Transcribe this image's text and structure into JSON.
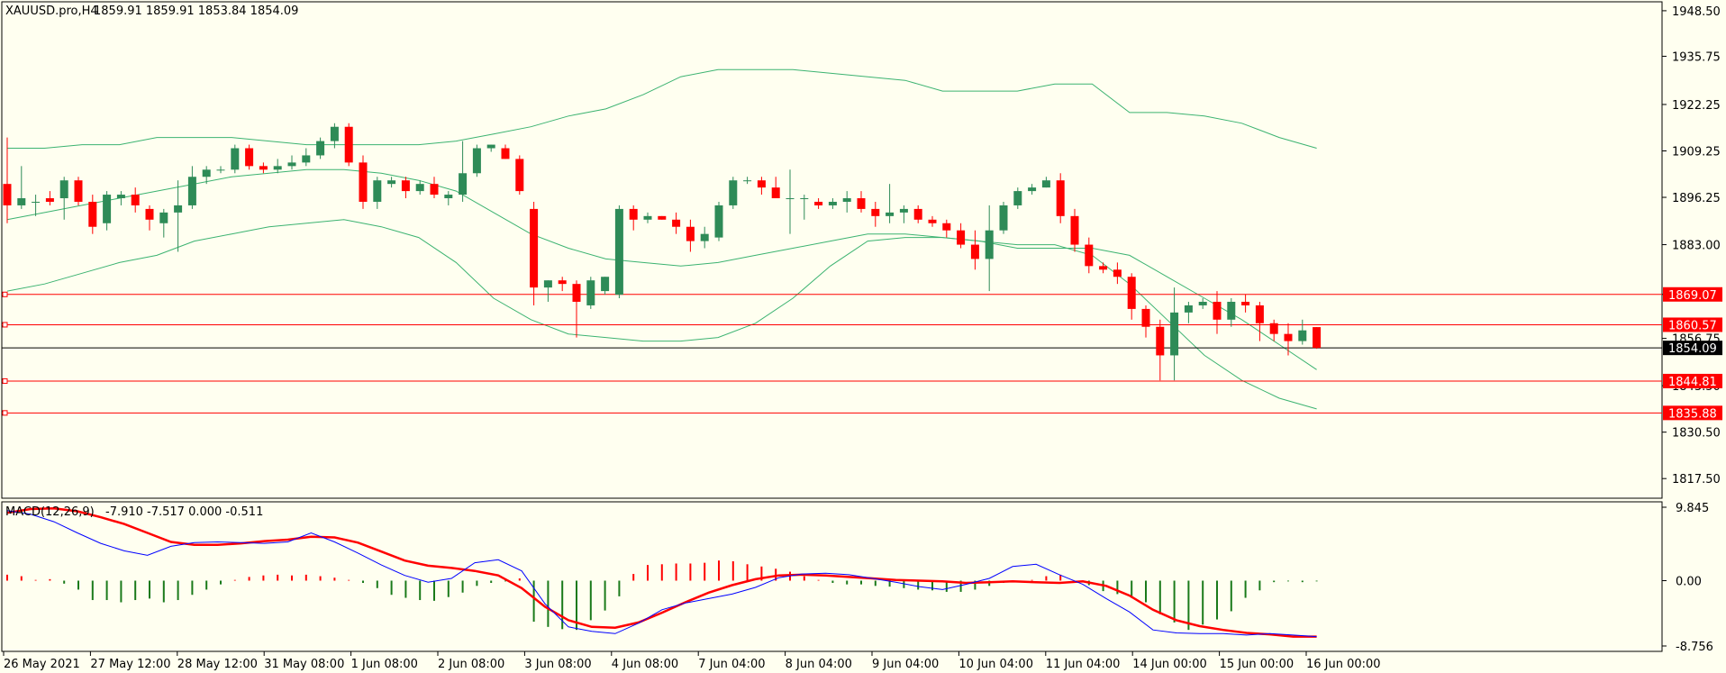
{
  "header": {
    "symbol_label": "XAUUSD.pro,H4",
    "ohlc": "1859.91 1859.91 1853.84 1854.09"
  },
  "macd": {
    "label": "MACD(12,26,9)",
    "values": "-7.910 -7.517 0.000 -0.511"
  },
  "colors": {
    "background": "#fffff0",
    "bull": "#2e8b57",
    "bear": "#ff0000",
    "bands": "#3cb371",
    "macd_line": "#0000ff",
    "signal_line": "#ff0000",
    "levels": "#ff0000",
    "current_price": "#000000"
  },
  "chart_data": [
    {
      "type": "candlestick",
      "symbol": "XAUUSD.pro",
      "timeframe": "H4",
      "y_ticks": [
        "1948.50",
        "1935.75",
        "1922.25",
        "1909.25",
        "1896.25",
        "1883.00",
        "1869.07",
        "1856.75",
        "1843.50",
        "1830.50",
        "1817.50"
      ],
      "ylim": [
        1812,
        1951
      ],
      "x_labels": [
        "26 May 2021",
        "27 May 12:00",
        "28 May 12:00",
        "31 May 08:00",
        "1 Jun 08:00",
        "2 Jun 08:00",
        "3 Jun 08:00",
        "4 Jun 08:00",
        "7 Jun 04:00",
        "8 Jun 04:00",
        "9 Jun 04:00",
        "10 Jun 04:00",
        "11 Jun 04:00",
        "14 Jun 00:00",
        "15 Jun 00:00",
        "16 Jun 00:00"
      ],
      "candles": [
        {
          "o": 1900,
          "h": 1913,
          "l": 1889,
          "c": 1894
        },
        {
          "o": 1894,
          "h": 1905,
          "l": 1893,
          "c": 1896
        },
        {
          "o": 1895,
          "h": 1897,
          "l": 1891,
          "c": 1895
        },
        {
          "o": 1896,
          "h": 1898,
          "l": 1894,
          "c": 1895
        },
        {
          "o": 1896,
          "h": 1902,
          "l": 1890,
          "c": 1901
        },
        {
          "o": 1901,
          "h": 1902,
          "l": 1894,
          "c": 1895
        },
        {
          "o": 1895,
          "h": 1897,
          "l": 1886,
          "c": 1888
        },
        {
          "o": 1889,
          "h": 1898,
          "l": 1887,
          "c": 1897
        },
        {
          "o": 1896,
          "h": 1898,
          "l": 1894,
          "c": 1897
        },
        {
          "o": 1897,
          "h": 1899,
          "l": 1892,
          "c": 1894
        },
        {
          "o": 1893,
          "h": 1894,
          "l": 1887,
          "c": 1890
        },
        {
          "o": 1889,
          "h": 1893,
          "l": 1885,
          "c": 1892
        },
        {
          "o": 1892,
          "h": 1901,
          "l": 1881,
          "c": 1894
        },
        {
          "o": 1894,
          "h": 1905,
          "l": 1893,
          "c": 1902
        },
        {
          "o": 1902,
          "h": 1905,
          "l": 1900,
          "c": 1904
        },
        {
          "o": 1904,
          "h": 1905,
          "l": 1903,
          "c": 1904
        },
        {
          "o": 1904,
          "h": 1911,
          "l": 1903,
          "c": 1910
        },
        {
          "o": 1910,
          "h": 1911,
          "l": 1904,
          "c": 1905
        },
        {
          "o": 1905,
          "h": 1906,
          "l": 1903,
          "c": 1904
        },
        {
          "o": 1904,
          "h": 1907,
          "l": 1903,
          "c": 1905
        },
        {
          "o": 1905,
          "h": 1908,
          "l": 1904,
          "c": 1906
        },
        {
          "o": 1906,
          "h": 1910,
          "l": 1905,
          "c": 1908
        },
        {
          "o": 1908,
          "h": 1913,
          "l": 1907,
          "c": 1912
        },
        {
          "o": 1912,
          "h": 1917,
          "l": 1910,
          "c": 1916
        },
        {
          "o": 1916,
          "h": 1917,
          "l": 1905,
          "c": 1906
        },
        {
          "o": 1906,
          "h": 1908,
          "l": 1893,
          "c": 1895
        },
        {
          "o": 1895,
          "h": 1902,
          "l": 1893,
          "c": 1901
        },
        {
          "o": 1900,
          "h": 1902,
          "l": 1899,
          "c": 1901
        },
        {
          "o": 1901,
          "h": 1902,
          "l": 1896,
          "c": 1898
        },
        {
          "o": 1898,
          "h": 1901,
          "l": 1897,
          "c": 1900
        },
        {
          "o": 1900,
          "h": 1902,
          "l": 1896,
          "c": 1897
        },
        {
          "o": 1896,
          "h": 1898,
          "l": 1894,
          "c": 1897
        },
        {
          "o": 1897,
          "h": 1912,
          "l": 1895,
          "c": 1903
        },
        {
          "o": 1903,
          "h": 1911,
          "l": 1902,
          "c": 1910
        },
        {
          "o": 1910,
          "h": 1911,
          "l": 1909,
          "c": 1911
        },
        {
          "o": 1910,
          "h": 1911,
          "l": 1907,
          "c": 1907
        },
        {
          "o": 1907,
          "h": 1908,
          "l": 1897,
          "c": 1898
        },
        {
          "o": 1893,
          "h": 1895,
          "l": 1866,
          "c": 1871
        },
        {
          "o": 1871,
          "h": 1873,
          "l": 1867,
          "c": 1873
        },
        {
          "o": 1873,
          "h": 1874,
          "l": 1870,
          "c": 1872
        },
        {
          "o": 1872,
          "h": 1873,
          "l": 1857,
          "c": 1867
        },
        {
          "o": 1866,
          "h": 1874,
          "l": 1865,
          "c": 1873
        },
        {
          "o": 1870,
          "h": 1874,
          "l": 1869,
          "c": 1874
        },
        {
          "o": 1869,
          "h": 1894,
          "l": 1868,
          "c": 1893
        },
        {
          "o": 1893,
          "h": 1894,
          "l": 1887,
          "c": 1890
        },
        {
          "o": 1890,
          "h": 1892,
          "l": 1889,
          "c": 1891
        },
        {
          "o": 1891,
          "h": 1891,
          "l": 1890,
          "c": 1890
        },
        {
          "o": 1890,
          "h": 1892,
          "l": 1886,
          "c": 1888
        },
        {
          "o": 1888,
          "h": 1890,
          "l": 1881,
          "c": 1884
        },
        {
          "o": 1884,
          "h": 1888,
          "l": 1882,
          "c": 1886
        },
        {
          "o": 1885,
          "h": 1895,
          "l": 1884,
          "c": 1894
        },
        {
          "o": 1894,
          "h": 1902,
          "l": 1893,
          "c": 1901
        },
        {
          "o": 1901,
          "h": 1902,
          "l": 1900,
          "c": 1901
        },
        {
          "o": 1901,
          "h": 1902,
          "l": 1897,
          "c": 1899
        },
        {
          "o": 1899,
          "h": 1902,
          "l": 1897,
          "c": 1896
        },
        {
          "o": 1896,
          "h": 1904,
          "l": 1886,
          "c": 1896
        },
        {
          "o": 1896,
          "h": 1897,
          "l": 1890,
          "c": 1896
        },
        {
          "o": 1895,
          "h": 1896,
          "l": 1893,
          "c": 1894
        },
        {
          "o": 1894,
          "h": 1896,
          "l": 1893,
          "c": 1895
        },
        {
          "o": 1895,
          "h": 1898,
          "l": 1892,
          "c": 1896
        },
        {
          "o": 1896,
          "h": 1898,
          "l": 1892,
          "c": 1893
        },
        {
          "o": 1893,
          "h": 1895,
          "l": 1888,
          "c": 1891
        },
        {
          "o": 1891,
          "h": 1900,
          "l": 1889,
          "c": 1892
        },
        {
          "o": 1892,
          "h": 1894,
          "l": 1889,
          "c": 1893
        },
        {
          "o": 1893,
          "h": 1894,
          "l": 1889,
          "c": 1890
        },
        {
          "o": 1890,
          "h": 1891,
          "l": 1888,
          "c": 1889
        },
        {
          "o": 1889,
          "h": 1890,
          "l": 1885,
          "c": 1887
        },
        {
          "o": 1887,
          "h": 1889,
          "l": 1882,
          "c": 1883
        },
        {
          "o": 1883,
          "h": 1887,
          "l": 1876,
          "c": 1879
        },
        {
          "o": 1879,
          "h": 1894,
          "l": 1870,
          "c": 1887
        },
        {
          "o": 1887,
          "h": 1895,
          "l": 1886,
          "c": 1894
        },
        {
          "o": 1894,
          "h": 1899,
          "l": 1893,
          "c": 1898
        },
        {
          "o": 1898,
          "h": 1900,
          "l": 1897,
          "c": 1899
        },
        {
          "o": 1899,
          "h": 1902,
          "l": 1899,
          "c": 1901
        },
        {
          "o": 1901,
          "h": 1903,
          "l": 1889,
          "c": 1891
        },
        {
          "o": 1891,
          "h": 1893,
          "l": 1881,
          "c": 1883
        },
        {
          "o": 1883,
          "h": 1885,
          "l": 1875,
          "c": 1877
        },
        {
          "o": 1877,
          "h": 1878,
          "l": 1875,
          "c": 1876
        },
        {
          "o": 1876,
          "h": 1878,
          "l": 1872,
          "c": 1874
        },
        {
          "o": 1874,
          "h": 1875,
          "l": 1862,
          "c": 1865
        },
        {
          "o": 1865,
          "h": 1866,
          "l": 1857,
          "c": 1860
        },
        {
          "o": 1860,
          "h": 1862,
          "l": 1845,
          "c": 1852
        },
        {
          "o": 1852,
          "h": 1871,
          "l": 1845,
          "c": 1864
        },
        {
          "o": 1864,
          "h": 1867,
          "l": 1861,
          "c": 1866
        },
        {
          "o": 1866,
          "h": 1868,
          "l": 1865,
          "c": 1867
        },
        {
          "o": 1867,
          "h": 1870,
          "l": 1858,
          "c": 1862
        },
        {
          "o": 1862,
          "h": 1868,
          "l": 1860,
          "c": 1867
        },
        {
          "o": 1867,
          "h": 1869,
          "l": 1864,
          "c": 1866
        },
        {
          "o": 1866,
          "h": 1867,
          "l": 1856,
          "c": 1861
        },
        {
          "o": 1861,
          "h": 1862,
          "l": 1856,
          "c": 1858
        },
        {
          "o": 1858,
          "h": 1861,
          "l": 1852,
          "c": 1856
        },
        {
          "o": 1856,
          "h": 1862,
          "l": 1855,
          "c": 1859
        },
        {
          "o": 1859.91,
          "h": 1859.91,
          "l": 1853.84,
          "c": 1854.09
        }
      ],
      "bollinger": {
        "upper": [
          1910,
          1910,
          1911,
          1911,
          1913,
          1913,
          1913,
          1912,
          1911,
          1911,
          1911,
          1911,
          1912,
          1914,
          1916,
          1919,
          1921,
          1925,
          1930,
          1932,
          1932,
          1932,
          1931,
          1930,
          1929,
          1926,
          1926,
          1926,
          1928,
          1928,
          1920,
          1920,
          1919,
          1917,
          1913,
          1910
        ],
        "middle": [
          1890,
          1892,
          1894,
          1896,
          1898,
          1900,
          1902,
          1903,
          1904,
          1904,
          1903,
          1901,
          1898,
          1892,
          1886,
          1882,
          1879,
          1878,
          1877,
          1878,
          1880,
          1882,
          1884,
          1886,
          1886,
          1885,
          1884,
          1882,
          1882,
          1882,
          1880,
          1874,
          1868,
          1862,
          1855,
          1848
        ],
        "lower": [
          1870,
          1872,
          1875,
          1878,
          1880,
          1884,
          1886,
          1888,
          1889,
          1890,
          1888,
          1885,
          1878,
          1868,
          1862,
          1858,
          1857,
          1856,
          1856,
          1857,
          1861,
          1868,
          1877,
          1884,
          1885,
          1885,
          1884,
          1883,
          1883,
          1880,
          1872,
          1862,
          1852,
          1845,
          1840,
          1837
        ]
      },
      "levels": [
        {
          "label": "1869.07",
          "value": 1869.07,
          "color": "#ff0000"
        },
        {
          "label": "1860.57",
          "value": 1860.57,
          "color": "#ff0000"
        },
        {
          "label": "1854.09",
          "value": 1854.09,
          "color": "#000000"
        },
        {
          "label": "1844.81",
          "value": 1844.81,
          "color": "#ff0000"
        },
        {
          "label": "1835.88",
          "value": 1835.88,
          "color": "#ff0000"
        }
      ]
    },
    {
      "type": "macd",
      "title": "MACD(12,26,9)",
      "y_ticks": [
        "9.845",
        "0.00",
        "-8.756"
      ],
      "ylim": [
        -8.756,
        9.845
      ],
      "histogram": [
        0.8,
        0.6,
        0.1,
        0.2,
        -0.4,
        -1.2,
        -2.6,
        -2.6,
        -2.9,
        -2.6,
        -2.4,
        -2.9,
        -2.6,
        -1.9,
        -1.2,
        -0.5,
        0.1,
        0.5,
        0.7,
        0.8,
        0.7,
        0.8,
        0.6,
        0.4,
        0.1,
        -0.3,
        -1.0,
        -1.9,
        -2.3,
        -2.6,
        -2.7,
        -2.2,
        -1.6,
        -0.7,
        -0.3,
        -0.1,
        0.3,
        -5.5,
        -6.2,
        -6.5,
        -6.6,
        -5.3,
        -4.0,
        -2.1,
        0.9,
        2.1,
        2.2,
        2.3,
        2.3,
        2.4,
        2.7,
        2.6,
        2.2,
        1.9,
        1.6,
        1.2,
        0.6,
        0.1,
        -0.3,
        -0.5,
        -0.5,
        -0.7,
        -0.8,
        -1.0,
        -1.2,
        -1.3,
        -1.5,
        -1.5,
        -1.2,
        -0.7,
        -0.3,
        -0.2,
        0.1,
        0.6,
        0.8,
        -0.2,
        -0.6,
        -1.4,
        -1.8,
        -2.3,
        -2.9,
        -4.5,
        -5.6,
        -6.6,
        -5.9,
        -5.2,
        -4.1,
        -2.3,
        -1.3,
        -0.2,
        -0.1,
        -0.2,
        -0.1
      ],
      "macd_line": [
        9.4,
        8.9,
        7.9,
        6.4,
        5.0,
        4.0,
        3.4,
        4.6,
        5.1,
        5.2,
        5.1,
        5.0,
        5.2,
        6.4,
        5.2,
        3.7,
        2.1,
        0.7,
        -0.2,
        0.3,
        2.4,
        2.8,
        1.3,
        -3.1,
        -6.2,
        -6.8,
        -7.1,
        -5.7,
        -3.9,
        -3.0,
        -2.4,
        -1.8,
        -0.9,
        0.4,
        0.9,
        1.0,
        0.8,
        0.3,
        -0.2,
        -0.8,
        -1.2,
        -0.5,
        0.3,
        1.9,
        2.2,
        0.8,
        -0.5,
        -2.4,
        -4.2,
        -6.6,
        -7.0,
        -7.1,
        -7.1,
        -7.3,
        -7.1,
        -7.3,
        -7.5
      ],
      "signal_line": [
        9.1,
        9.6,
        9.7,
        9.3,
        8.5,
        7.6,
        6.4,
        5.2,
        4.8,
        4.8,
        5.0,
        5.3,
        5.5,
        5.9,
        5.8,
        5.1,
        3.9,
        2.7,
        2.0,
        1.7,
        1.3,
        0.7,
        -1.0,
        -3.5,
        -5.3,
        -6.2,
        -6.3,
        -5.6,
        -4.3,
        -2.9,
        -1.6,
        -0.6,
        0.2,
        0.7,
        0.8,
        0.7,
        0.5,
        0.3,
        0.1,
        0.0,
        -0.1,
        -0.3,
        -0.2,
        -0.1,
        -0.2,
        -0.3,
        -0.1,
        -0.7,
        -2.0,
        -3.9,
        -5.3,
        -6.1,
        -6.6,
        -7.0,
        -7.2,
        -7.5,
        -7.5
      ]
    }
  ]
}
